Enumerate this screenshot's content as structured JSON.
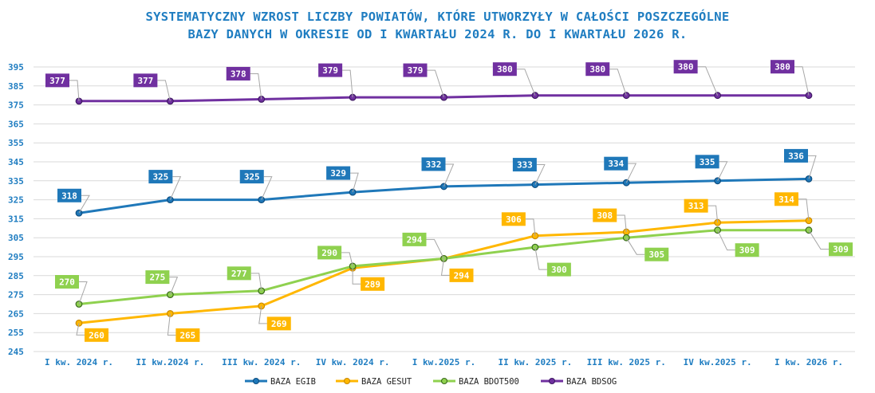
{
  "chart_data": {
    "type": "line",
    "title_line1": "SYSTEMATYCZNY WZROST LICZBY POWIATÓW, KTÓRE UTWORZYŁY W CAŁOŚCI POSZCZEGÓLNE",
    "title_line2": "BAZY DANYCH W OKRESIE OD I KWARTAŁU 2024 R. DO I KWARTAŁU 2026 R.",
    "categories": [
      "I kw. 2024 r.",
      "II kw.2024 r.",
      "III kw. 2024 r.",
      "IV kw. 2024 r.",
      "I kw.2025 r.",
      "II kw. 2025 r.",
      "III kw. 2025 r.",
      "IV kw.2025 r.",
      "I kw. 2026 r."
    ],
    "ylim": [
      245,
      395
    ],
    "yticks": [
      245,
      255,
      265,
      275,
      285,
      295,
      305,
      315,
      325,
      335,
      345,
      355,
      365,
      375,
      385,
      395
    ],
    "grid": true,
    "legend_position": "bottom",
    "series": [
      {
        "name": "BAZA EGIB",
        "color": "#1F78B9",
        "values": [
          318,
          325,
          325,
          329,
          332,
          333,
          334,
          335,
          336
        ]
      },
      {
        "name": "BAZA GESUT",
        "color": "#FFB700",
        "values": [
          260,
          265,
          269,
          289,
          294,
          306,
          308,
          313,
          314
        ]
      },
      {
        "name": "BAZA BDOT500",
        "color": "#8FD14F",
        "values": [
          270,
          275,
          277,
          290,
          294,
          300,
          305,
          309,
          309
        ]
      },
      {
        "name": "BAZA BDSOG",
        "color": "#7030A0",
        "values": [
          377,
          377,
          378,
          379,
          379,
          380,
          380,
          380,
          380
        ]
      }
    ]
  }
}
